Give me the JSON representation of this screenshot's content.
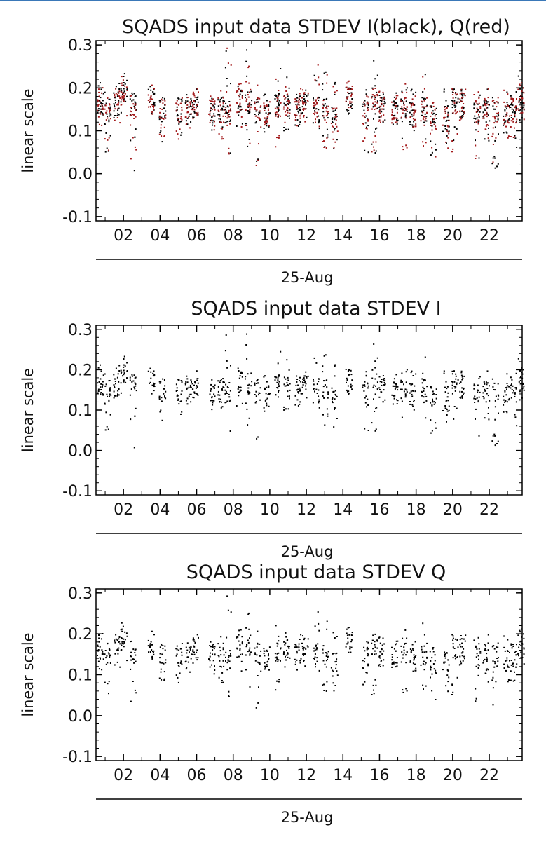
{
  "colors": {
    "black_series": "#000000",
    "red_series": "#a3191b",
    "frame": "#000000"
  },
  "chart_data": [
    {
      "type": "scatter",
      "title": "SQADS input data STDEV I(black), Q(red)",
      "xlabel": "25-Aug",
      "ylabel": "linear scale",
      "xlim": [
        0.5,
        23.8
      ],
      "ylim": [
        -0.11,
        0.31
      ],
      "yticks": [
        "0.3",
        "0.2",
        "0.1",
        "0.0",
        "-0.1"
      ],
      "ytick_values": [
        0.3,
        0.2,
        0.1,
        0.0,
        -0.1
      ],
      "xticks": [
        "02",
        "04",
        "06",
        "08",
        "10",
        "12",
        "14",
        "16",
        "18",
        "20",
        "22"
      ],
      "xtick_values": [
        2,
        4,
        6,
        8,
        10,
        12,
        14,
        16,
        18,
        20,
        22
      ],
      "grid": false,
      "series": [
        {
          "name": "I",
          "color": "black"
        },
        {
          "name": "Q",
          "color": "red"
        }
      ]
    },
    {
      "type": "scatter",
      "title": "SQADS input data STDEV I",
      "xlabel": "25-Aug",
      "ylabel": "linear scale",
      "xlim": [
        0.5,
        23.8
      ],
      "ylim": [
        -0.11,
        0.31
      ],
      "yticks": [
        "0.3",
        "0.2",
        "0.1",
        "0.0",
        "-0.1"
      ],
      "ytick_values": [
        0.3,
        0.2,
        0.1,
        0.0,
        -0.1
      ],
      "xticks": [
        "02",
        "04",
        "06",
        "08",
        "10",
        "12",
        "14",
        "16",
        "18",
        "20",
        "22"
      ],
      "xtick_values": [
        2,
        4,
        6,
        8,
        10,
        12,
        14,
        16,
        18,
        20,
        22
      ],
      "grid": false,
      "series": [
        {
          "name": "I",
          "color": "black"
        }
      ]
    },
    {
      "type": "scatter",
      "title": "SQADS input data STDEV Q",
      "xlabel": "25-Aug",
      "ylabel": "linear scale",
      "xlim": [
        0.5,
        23.8
      ],
      "ylim": [
        -0.11,
        0.31
      ],
      "yticks": [
        "0.3",
        "0.2",
        "0.1",
        "0.0",
        "-0.1"
      ],
      "ytick_values": [
        0.3,
        0.2,
        0.1,
        0.0,
        -0.1
      ],
      "xticks": [
        "02",
        "04",
        "06",
        "08",
        "10",
        "12",
        "14",
        "16",
        "18",
        "20",
        "22"
      ],
      "xtick_values": [
        2,
        4,
        6,
        8,
        10,
        12,
        14,
        16,
        18,
        20,
        22
      ],
      "grid": false,
      "series": [
        {
          "name": "Q",
          "color": "black"
        }
      ]
    }
  ],
  "clusters": [
    {
      "t": 0.7,
      "center": 0.17,
      "min": 0.11,
      "max": 0.22
    },
    {
      "t": 1.1,
      "center": 0.15,
      "min": 0.03,
      "max": 0.21
    },
    {
      "t": 1.6,
      "center": 0.16,
      "min": 0.12,
      "max": 0.22
    },
    {
      "t": 2.0,
      "center": 0.19,
      "min": 0.12,
      "max": 0.27
    },
    {
      "t": 2.5,
      "center": 0.16,
      "min": 0.0,
      "max": 0.16
    },
    {
      "t": 3.5,
      "center": 0.17,
      "min": 0.12,
      "max": 0.22
    },
    {
      "t": 4.1,
      "center": 0.15,
      "min": 0.06,
      "max": 0.18
    },
    {
      "t": 5.0,
      "center": 0.15,
      "min": 0.08,
      "max": 0.19
    },
    {
      "t": 5.5,
      "center": 0.16,
      "min": 0.1,
      "max": 0.18
    },
    {
      "t": 5.9,
      "center": 0.16,
      "min": 0.12,
      "max": 0.2
    },
    {
      "t": 6.8,
      "center": 0.15,
      "min": 0.1,
      "max": 0.19
    },
    {
      "t": 7.3,
      "center": 0.15,
      "min": 0.08,
      "max": 0.2
    },
    {
      "t": 7.7,
      "center": 0.14,
      "min": 0.04,
      "max": 0.3
    },
    {
      "t": 8.3,
      "center": 0.17,
      "min": 0.1,
      "max": 0.22
    },
    {
      "t": 8.8,
      "center": 0.17,
      "min": 0.06,
      "max": 0.29
    },
    {
      "t": 9.3,
      "center": 0.15,
      "min": 0.02,
      "max": 0.23
    },
    {
      "t": 9.8,
      "center": 0.14,
      "min": 0.09,
      "max": 0.19
    },
    {
      "t": 10.4,
      "center": 0.16,
      "min": 0.06,
      "max": 0.25
    },
    {
      "t": 10.9,
      "center": 0.16,
      "min": 0.1,
      "max": 0.23
    },
    {
      "t": 11.5,
      "center": 0.15,
      "min": 0.1,
      "max": 0.2
    },
    {
      "t": 11.9,
      "center": 0.17,
      "min": 0.12,
      "max": 0.19
    },
    {
      "t": 12.5,
      "center": 0.15,
      "min": 0.08,
      "max": 0.26
    },
    {
      "t": 13.0,
      "center": 0.15,
      "min": 0.06,
      "max": 0.24
    },
    {
      "t": 13.5,
      "center": 0.13,
      "min": 0.05,
      "max": 0.22
    },
    {
      "t": 14.3,
      "center": 0.17,
      "min": 0.14,
      "max": 0.22
    },
    {
      "t": 15.2,
      "center": 0.14,
      "min": 0.04,
      "max": 0.2
    },
    {
      "t": 15.7,
      "center": 0.18,
      "min": 0.05,
      "max": 0.28
    },
    {
      "t": 16.1,
      "center": 0.15,
      "min": 0.12,
      "max": 0.2
    },
    {
      "t": 16.8,
      "center": 0.15,
      "min": 0.11,
      "max": 0.19
    },
    {
      "t": 17.3,
      "center": 0.15,
      "min": 0.05,
      "max": 0.23
    },
    {
      "t": 17.8,
      "center": 0.14,
      "min": 0.1,
      "max": 0.2
    },
    {
      "t": 18.4,
      "center": 0.15,
      "min": 0.06,
      "max": 0.25
    },
    {
      "t": 18.9,
      "center": 0.14,
      "min": 0.03,
      "max": 0.17
    },
    {
      "t": 19.6,
      "center": 0.13,
      "min": 0.06,
      "max": 0.2
    },
    {
      "t": 20.1,
      "center": 0.17,
      "min": 0.05,
      "max": 0.23
    },
    {
      "t": 20.5,
      "center": 0.16,
      "min": 0.12,
      "max": 0.2
    },
    {
      "t": 21.3,
      "center": 0.14,
      "min": 0.03,
      "max": 0.22
    },
    {
      "t": 21.8,
      "center": 0.15,
      "min": 0.07,
      "max": 0.2
    },
    {
      "t": 22.3,
      "center": 0.15,
      "min": 0.0,
      "max": 0.25
    },
    {
      "t": 22.9,
      "center": 0.14,
      "min": 0.08,
      "max": 0.2
    },
    {
      "t": 23.3,
      "center": 0.15,
      "min": 0.06,
      "max": 0.2
    },
    {
      "t": 23.7,
      "center": 0.18,
      "min": 0.11,
      "max": 0.23
    }
  ]
}
